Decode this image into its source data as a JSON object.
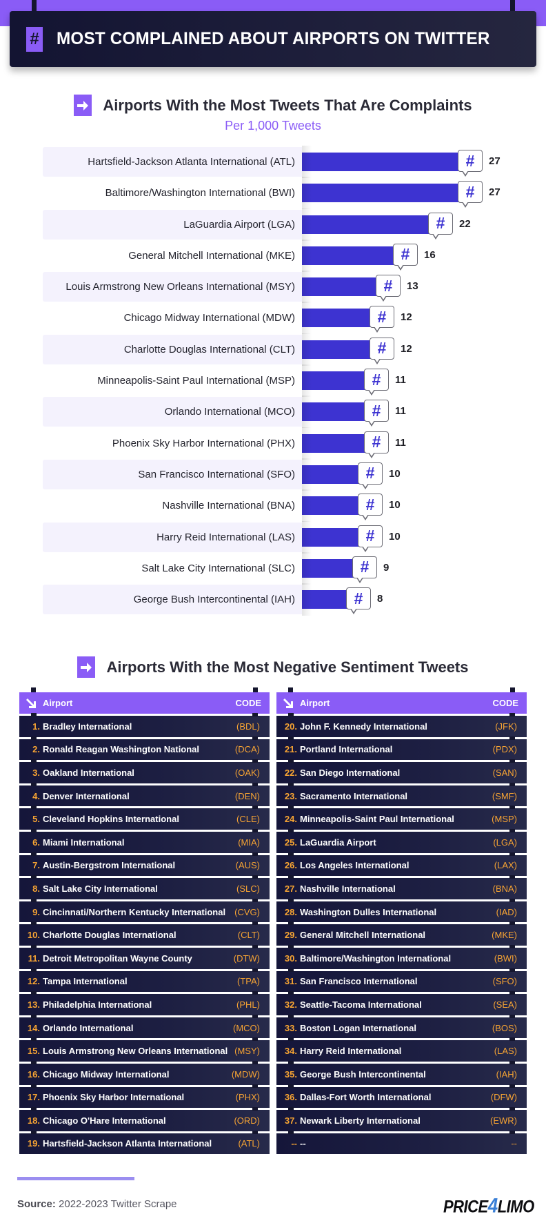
{
  "header": {
    "badge_icon": "#",
    "title": "MOST COMPLAINED ABOUT AIRPORTS ON TWITTER"
  },
  "colors": {
    "accent_purple": "#8a5cf6",
    "bar_blue": "#3d33d1",
    "navy": "#15163a",
    "rank_orange": "#f7a433"
  },
  "chart_section": {
    "title": "Airports With the Most Tweets That Are Complaints",
    "subtitle": "Per 1,000 Tweets"
  },
  "chart_data": {
    "type": "bar",
    "orientation": "horizontal",
    "title": "Airports With the Most Tweets That Are Complaints",
    "subtitle": "Per 1,000 Tweets",
    "xlabel": "",
    "ylabel": "",
    "grid": false,
    "legend": null,
    "categories": [
      "Hartsfield-Jackson Atlanta International (ATL)",
      "Baltimore/Washington International (BWI)",
      "LaGuardia Airport (LGA)",
      "General Mitchell International (MKE)",
      "Louis Armstrong New Orleans International (MSY)",
      "Chicago Midway International (MDW)",
      "Charlotte Douglas International (CLT)",
      "Minneapolis-Saint Paul International (MSP)",
      "Orlando International (MCO)",
      "Phoenix Sky Harbor International (PHX)",
      "San Francisco International (SFO)",
      "Nashville International (BNA)",
      "Harry Reid International (LAS)",
      "Salt Lake City International (SLC)",
      "George Bush Intercontinental (IAH)"
    ],
    "values": [
      27,
      27,
      22,
      16,
      13,
      12,
      12,
      11,
      11,
      11,
      10,
      10,
      10,
      9,
      8
    ],
    "value_labels": [
      "27",
      "27",
      "22",
      "16",
      "13",
      "12",
      "12",
      "11",
      "11",
      "11",
      "10",
      "10",
      "10",
      "9",
      "8"
    ],
    "bubble_icon": "#"
  },
  "table_section": {
    "title": "Airports With the Most Negative Sentiment Tweets",
    "columns": {
      "airport": "Airport",
      "code": "CODE"
    },
    "left": [
      {
        "rank": "1.",
        "name": "Bradley International",
        "code": "(BDL)"
      },
      {
        "rank": "2.",
        "name": "Ronald Reagan Washington National",
        "code": "(DCA)"
      },
      {
        "rank": "3.",
        "name": "Oakland International",
        "code": "(OAK)"
      },
      {
        "rank": "4.",
        "name": "Denver International",
        "code": "(DEN)"
      },
      {
        "rank": "5.",
        "name": "Cleveland Hopkins International",
        "code": "(CLE)"
      },
      {
        "rank": "6.",
        "name": "Miami International",
        "code": "(MIA)"
      },
      {
        "rank": "7.",
        "name": "Austin-Bergstrom International",
        "code": "(AUS)"
      },
      {
        "rank": "8.",
        "name": "Salt Lake City International",
        "code": "(SLC)"
      },
      {
        "rank": "9.",
        "name": "Cincinnati/Northern Kentucky International",
        "code": "(CVG)"
      },
      {
        "rank": "10.",
        "name": "Charlotte Douglas International",
        "code": "(CLT)"
      },
      {
        "rank": "11.",
        "name": "Detroit Metropolitan Wayne County",
        "code": "(DTW)"
      },
      {
        "rank": "12.",
        "name": "Tampa International",
        "code": "(TPA)"
      },
      {
        "rank": "13.",
        "name": "Philadelphia International",
        "code": "(PHL)"
      },
      {
        "rank": "14.",
        "name": "Orlando International",
        "code": "(MCO)"
      },
      {
        "rank": "15.",
        "name": "Louis Armstrong New Orleans International",
        "code": "(MSY)"
      },
      {
        "rank": "16.",
        "name": "Chicago Midway International",
        "code": "(MDW)"
      },
      {
        "rank": "17.",
        "name": "Phoenix Sky Harbor International",
        "code": "(PHX)"
      },
      {
        "rank": "18.",
        "name": "Chicago O'Hare International",
        "code": "(ORD)"
      },
      {
        "rank": "19.",
        "name": "Hartsfield-Jackson Atlanta International",
        "code": "(ATL)"
      }
    ],
    "right": [
      {
        "rank": "20.",
        "name": "John F. Kennedy International",
        "code": "(JFK)"
      },
      {
        "rank": "21.",
        "name": "Portland International",
        "code": "(PDX)"
      },
      {
        "rank": "22.",
        "name": "San Diego International",
        "code": "(SAN)"
      },
      {
        "rank": "23.",
        "name": "Sacramento International",
        "code": "(SMF)"
      },
      {
        "rank": "24.",
        "name": "Minneapolis-Saint Paul International",
        "code": "(MSP)"
      },
      {
        "rank": "25.",
        "name": "LaGuardia Airport",
        "code": "(LGA)"
      },
      {
        "rank": "26.",
        "name": "Los Angeles International",
        "code": "(LAX)"
      },
      {
        "rank": "27.",
        "name": "Nashville International",
        "code": "(BNA)"
      },
      {
        "rank": "28.",
        "name": "Washington Dulles International",
        "code": "(IAD)"
      },
      {
        "rank": "29.",
        "name": "General Mitchell International",
        "code": "(MKE)"
      },
      {
        "rank": "30.",
        "name": "Baltimore/Washington International",
        "code": "(BWI)"
      },
      {
        "rank": "31.",
        "name": "San Francisco International",
        "code": "(SFO)"
      },
      {
        "rank": "32.",
        "name": "Seattle-Tacoma International",
        "code": "(SEA)"
      },
      {
        "rank": "33.",
        "name": "Boston Logan International",
        "code": "(BOS)"
      },
      {
        "rank": "34.",
        "name": "Harry Reid International",
        "code": "(LAS)"
      },
      {
        "rank": "35.",
        "name": "George Bush Intercontinental",
        "code": "(IAH)"
      },
      {
        "rank": "36.",
        "name": "Dallas-Fort Worth International",
        "code": "(DFW)"
      },
      {
        "rank": "37.",
        "name": "Newark Liberty International",
        "code": "(EWR)"
      },
      {
        "rank": "--",
        "name": "--",
        "code": "--"
      }
    ]
  },
  "footer": {
    "source_label": "Source:",
    "source_text": " 2022-2023 Twitter Scrape",
    "logo_part1": "PRICE",
    "logo_part2": "4",
    "logo_part3": "LIMO"
  }
}
